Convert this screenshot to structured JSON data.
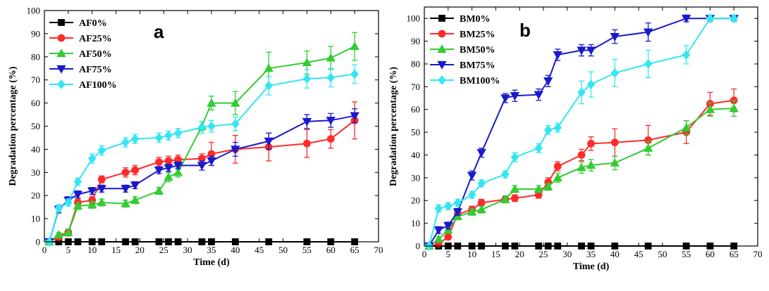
{
  "chart_data": [
    {
      "type": "line",
      "panel_label": "a",
      "xlabel": "Time (d)",
      "ylabel": "Degradation percentage (%)",
      "xlim": [
        0,
        70
      ],
      "ylim": [
        0,
        100
      ],
      "xticks": [
        0,
        5,
        10,
        15,
        20,
        25,
        30,
        35,
        40,
        45,
        50,
        55,
        60,
        65,
        70
      ],
      "yticks": [
        0,
        10,
        20,
        30,
        40,
        50,
        60,
        70,
        80,
        90,
        100
      ],
      "legend_position": "top-left",
      "grid": false,
      "x": [
        1,
        3,
        5,
        7,
        10,
        12,
        17,
        19,
        24,
        26,
        28,
        33,
        35,
        40,
        47,
        55,
        60,
        65
      ],
      "series": [
        {
          "name": "AF0%",
          "color": "#000000",
          "marker": "square",
          "values": [
            0,
            0,
            0,
            0,
            0,
            0,
            0,
            0,
            0,
            0,
            0,
            0,
            0,
            0,
            0,
            0,
            0,
            0
          ],
          "errors": [
            0,
            0,
            0,
            0,
            0,
            0,
            0,
            0,
            0,
            0,
            0,
            0,
            0,
            0,
            0,
            0,
            0,
            0
          ]
        },
        {
          "name": "AF25%",
          "color": "#ff2a2a",
          "marker": "circle",
          "values": [
            0,
            2,
            4,
            17,
            18,
            27,
            30,
            31,
            34.5,
            35,
            35.5,
            36,
            38,
            40,
            41,
            42.5,
            44.5,
            52.5
          ],
          "errors": [
            0,
            1,
            1.5,
            1.5,
            1.5,
            1.5,
            2,
            2,
            2,
            2,
            2,
            2,
            5,
            6,
            6,
            6,
            4,
            8
          ]
        },
        {
          "name": "AF50%",
          "color": "#33cc33",
          "marker": "triangle-up",
          "values": [
            0,
            3,
            4,
            15.5,
            16,
            17,
            16.5,
            18,
            22,
            28,
            30,
            50,
            60,
            60,
            75,
            77.5,
            79.5,
            84.5
          ],
          "errors": [
            0,
            1,
            1.5,
            1.5,
            1.5,
            1.5,
            1.5,
            1.5,
            1.5,
            2,
            2,
            2,
            3,
            5,
            7,
            5,
            5,
            6
          ]
        },
        {
          "name": "AF75%",
          "color": "#1a1acc",
          "marker": "triangle-down",
          "values": [
            0,
            14,
            18,
            20.5,
            22,
            23,
            23,
            24.5,
            31,
            32,
            33,
            33,
            35,
            40,
            43.5,
            52,
            52.5,
            54.5
          ],
          "errors": [
            0,
            1.5,
            1.5,
            1.5,
            1.5,
            1.5,
            1.5,
            1.5,
            1.5,
            1.5,
            1.5,
            2,
            2,
            3,
            3.5,
            3,
            3,
            3
          ]
        },
        {
          "name": "AF100%",
          "color": "#33e6f2",
          "marker": "diamond",
          "values": [
            0,
            14.5,
            17,
            26,
            36,
            39.5,
            43,
            44.5,
            45,
            46,
            47,
            49.5,
            50,
            51,
            67.5,
            70.5,
            71,
            72.5
          ],
          "errors": [
            0,
            1.5,
            1.5,
            1.5,
            2,
            2,
            2,
            2,
            2,
            2,
            2,
            2.5,
            2.5,
            3,
            4,
            4,
            4,
            4
          ]
        }
      ]
    },
    {
      "type": "line",
      "panel_label": "b",
      "xlabel": "Time (d)",
      "ylabel": "Degradation percentage (%)",
      "xlim": [
        0,
        70
      ],
      "ylim": [
        0,
        105
      ],
      "xticks": [
        0,
        5,
        10,
        15,
        20,
        25,
        30,
        35,
        40,
        45,
        50,
        55,
        60,
        65,
        70
      ],
      "yticks": [
        0,
        10,
        20,
        30,
        40,
        50,
        60,
        70,
        80,
        90,
        100
      ],
      "legend_position": "top-left",
      "grid": false,
      "x": [
        1,
        3,
        5,
        7,
        10,
        12,
        17,
        19,
        24,
        26,
        28,
        33,
        35,
        40,
        47,
        55,
        60,
        65
      ],
      "series": [
        {
          "name": "BM0%",
          "color": "#000000",
          "marker": "square",
          "values": [
            0,
            0,
            0,
            0,
            0,
            0,
            0,
            0,
            0,
            0,
            0,
            0,
            0,
            0,
            0,
            0,
            0,
            0
          ],
          "errors": [
            0,
            0,
            0,
            0,
            0,
            0,
            0,
            0,
            0,
            0,
            0,
            0,
            0,
            0,
            0,
            0,
            0,
            0
          ]
        },
        {
          "name": "BM25%",
          "color": "#ff2a2a",
          "marker": "circle",
          "values": [
            0,
            1,
            4,
            14,
            16,
            19,
            20.5,
            21,
            22.5,
            28,
            35,
            40,
            45,
            45.5,
            46.5,
            50,
            62.5,
            64
          ],
          "errors": [
            0,
            1,
            1,
            1.5,
            1.5,
            1.5,
            1.5,
            1.5,
            1.5,
            2,
            2,
            2.5,
            3,
            6,
            6.5,
            5,
            5,
            5
          ]
        },
        {
          "name": "BM50%",
          "color": "#33cc33",
          "marker": "triangle-up",
          "values": [
            0,
            3,
            7,
            13,
            15,
            16,
            20.5,
            25,
            25,
            26,
            30,
            34.5,
            35.5,
            36.5,
            43,
            52,
            60,
            60.5
          ],
          "errors": [
            0,
            1,
            1,
            1.5,
            1.5,
            1.5,
            1.5,
            1.5,
            1.5,
            1.5,
            2,
            2.5,
            2.5,
            3,
            3,
            3,
            3,
            3.5
          ]
        },
        {
          "name": "BM75%",
          "color": "#1a1acc",
          "marker": "triangle-down",
          "values": [
            0,
            7,
            9,
            15,
            31,
            41,
            65,
            66,
            66.5,
            72.5,
            84,
            86,
            86,
            92,
            94,
            100,
            100,
            100
          ],
          "errors": [
            0,
            1.5,
            1.5,
            1.5,
            2,
            2,
            2,
            2.5,
            2.5,
            2.5,
            2.5,
            2.5,
            2.5,
            3,
            4,
            1.5,
            1,
            1
          ]
        },
        {
          "name": "BM100%",
          "color": "#33e6f2",
          "marker": "diamond",
          "values": [
            0,
            16.5,
            17.5,
            19,
            22.5,
            27.5,
            31.5,
            39,
            43,
            51,
            52,
            67.5,
            71,
            76,
            80,
            84,
            100,
            100
          ],
          "errors": [
            0,
            1.5,
            1.5,
            1.5,
            1.5,
            1.5,
            1.5,
            2,
            2,
            2,
            2,
            5,
            5.5,
            6,
            6,
            4,
            1.5,
            1.5
          ]
        }
      ]
    }
  ]
}
